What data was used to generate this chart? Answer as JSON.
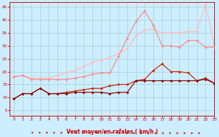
{
  "bg_color": "#cceeff",
  "grid_color": "#aacccc",
  "xlim": [
    -0.5,
    23
  ],
  "ylim": [
    3,
    47
  ],
  "yticks": [
    5,
    10,
    15,
    20,
    25,
    30,
    35,
    40,
    45
  ],
  "xticks": [
    0,
    1,
    2,
    3,
    4,
    5,
    6,
    7,
    8,
    9,
    10,
    11,
    12,
    13,
    14,
    15,
    16,
    17,
    18,
    19,
    20,
    21,
    22,
    23
  ],
  "xlabel": "Vent moyen/en rafales ( km/h )",
  "xlabel_color": "#cc0000",
  "tick_color": "#cc0000",
  "series": [
    {
      "x": [
        0,
        1,
        2,
        3,
        4,
        5,
        6,
        7,
        8,
        9,
        10,
        11,
        12,
        13,
        14,
        15,
        16,
        17,
        18,
        19,
        20,
        21,
        22,
        23
      ],
      "y": [
        9.5,
        11.5,
        11.5,
        13.5,
        11.5,
        11.5,
        11.5,
        12.0,
        12.0,
        12.0,
        12.0,
        11.5,
        12.0,
        12.0,
        16.5,
        16.5,
        16.5,
        16.5,
        16.5,
        16.5,
        16.5,
        16.5,
        17.0,
        15.5
      ],
      "color": "#880000",
      "lw": 0.9,
      "marker": "D",
      "ms": 1.8,
      "zorder": 5
    },
    {
      "x": [
        0,
        1,
        2,
        3,
        4,
        5,
        6,
        7,
        8,
        9,
        10,
        11,
        12,
        13,
        14,
        15,
        16,
        17,
        18,
        19,
        20,
        21,
        22,
        23
      ],
      "y": [
        9.5,
        11.5,
        11.5,
        13.5,
        11.5,
        11.5,
        12.0,
        12.5,
        13.0,
        13.5,
        13.5,
        14.5,
        15.0,
        15.0,
        16.5,
        17.0,
        20.5,
        23.0,
        20.0,
        20.0,
        19.5,
        16.5,
        17.5,
        15.5
      ],
      "color": "#cc2200",
      "lw": 0.9,
      "marker": "D",
      "ms": 1.8,
      "zorder": 4
    },
    {
      "x": [
        0,
        1,
        2,
        3,
        4,
        5,
        6,
        7,
        8,
        9,
        10,
        11,
        12,
        13,
        14,
        15,
        16,
        17,
        18,
        19,
        20,
        21,
        22,
        23
      ],
      "y": [
        18.0,
        18.5,
        17.0,
        17.0,
        17.0,
        17.0,
        17.0,
        17.5,
        18.0,
        19.0,
        19.5,
        19.5,
        26.0,
        33.0,
        39.5,
        43.5,
        38.0,
        30.0,
        30.0,
        29.5,
        32.0,
        32.0,
        29.5,
        29.5
      ],
      "color": "#ff8888",
      "lw": 0.9,
      "marker": "D",
      "ms": 1.8,
      "zorder": 3
    },
    {
      "x": [
        0,
        1,
        2,
        3,
        4,
        5,
        6,
        7,
        8,
        9,
        10,
        11,
        12,
        13,
        14,
        15,
        16,
        17,
        18,
        19,
        20,
        21,
        22,
        23
      ],
      "y": [
        18.0,
        18.5,
        17.5,
        17.5,
        17.5,
        18.5,
        19.5,
        20.5,
        22.0,
        23.5,
        24.5,
        25.5,
        27.0,
        29.0,
        34.0,
        36.0,
        36.5,
        35.0,
        35.0,
        35.0,
        35.5,
        35.5,
        46.0,
        30.0
      ],
      "color": "#ffbbbb",
      "lw": 0.9,
      "marker": "D",
      "ms": 1.8,
      "zorder": 2
    }
  ],
  "arrow_color": "#cc0000"
}
